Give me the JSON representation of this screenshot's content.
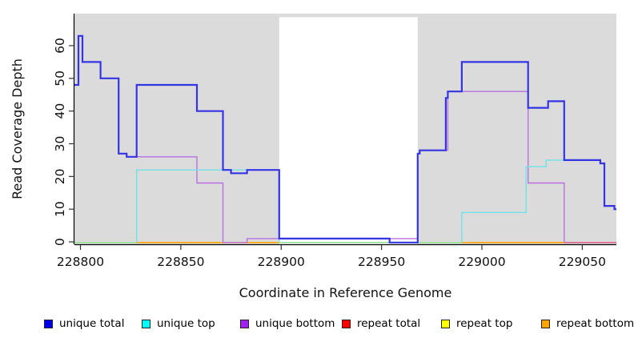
{
  "chart_data": {
    "type": "line",
    "subtype": "step",
    "title": "",
    "xlabel": "Coordinate in Reference Genome",
    "ylabel": "Read Coverage Depth",
    "x_ticks": [
      228800,
      228850,
      228900,
      228950,
      229000,
      229050
    ],
    "y_ticks": [
      0,
      10,
      20,
      30,
      40,
      50,
      60
    ],
    "xlim": [
      228797,
      229067
    ],
    "ylim": [
      0,
      66
    ],
    "grid": false,
    "legend_position": "bottom",
    "shaded_regions": [
      {
        "from": 228797,
        "to": 228899,
        "color": "#dbdbdb"
      },
      {
        "from": 228968,
        "to": 229067,
        "color": "#dbdbdb"
      }
    ],
    "gap_region": {
      "from": 228899,
      "to": 228968
    },
    "series": [
      {
        "name": "repeat total",
        "layer": 1,
        "color": "#ff0000",
        "width": 1.3,
        "paths": [
          [
            [
              228797,
              0
            ],
            [
              229067,
              0
            ]
          ]
        ]
      },
      {
        "name": "repeat top",
        "layer": 1,
        "color": "#ffff00",
        "width": 1.3,
        "paths": [
          [
            [
              228797,
              0
            ],
            [
              229067,
              0
            ]
          ]
        ]
      },
      {
        "name": "repeat bottom",
        "layer": 1,
        "color": "#ffa500",
        "width": 1.4,
        "paths": [
          [
            [
              228797,
              0
            ],
            [
              229067,
              0
            ]
          ]
        ]
      },
      {
        "name": "unique bottom",
        "layer": 2,
        "color": "#b671e0",
        "width": 1.4,
        "paths": [
          [
            [
              228828,
              26
            ],
            [
              228858,
              18
            ],
            [
              228871,
              0
            ],
            [
              228883,
              1
            ],
            [
              228968,
              27
            ],
            [
              228969,
              28
            ],
            [
              228983,
              46
            ],
            [
              229023,
              18
            ],
            [
              229041,
              0
            ],
            [
              229041,
              0
            ]
          ]
        ]
      },
      {
        "name": "unique top",
        "layer": 2,
        "color": "#6fe3e8",
        "width": 1.4,
        "paths": [
          [
            [
              228828,
              0
            ],
            [
              228828,
              22
            ],
            [
              228899,
              0
            ],
            [
              228899,
              0
            ]
          ],
          [
            [
              228990,
              0
            ],
            [
              228990,
              9
            ],
            [
              229022,
              23
            ],
            [
              229032,
              25
            ],
            [
              229059,
              24
            ],
            [
              229061,
              11
            ],
            [
              229066,
              10
            ],
            [
              229067,
              10
            ]
          ]
        ]
      },
      {
        "name": "unique total",
        "layer": 2,
        "color": "#3434e4",
        "width": 2.2,
        "paths": [
          [
            [
              228797,
              48
            ],
            [
              228799,
              63
            ],
            [
              228801,
              55
            ],
            [
              228810,
              50
            ],
            [
              228819,
              27
            ],
            [
              228823,
              26
            ],
            [
              228828,
              48
            ],
            [
              228858,
              40
            ],
            [
              228871,
              22
            ],
            [
              228875,
              21
            ],
            [
              228883,
              22
            ],
            [
              228899,
              1
            ],
            [
              228954,
              0
            ],
            [
              228968,
              27
            ],
            [
              228969,
              28
            ],
            [
              228982,
              44
            ],
            [
              228983,
              46
            ],
            [
              228990,
              55
            ],
            [
              229023,
              41
            ],
            [
              229033,
              43
            ],
            [
              229041,
              25
            ],
            [
              229059,
              24
            ],
            [
              229061,
              11
            ],
            [
              229066,
              10
            ],
            [
              229067,
              10
            ]
          ]
        ]
      }
    ],
    "baseline_segments": [
      {
        "from": 228797,
        "to": 228828,
        "color": "#98df98"
      },
      {
        "from": 228828,
        "to": 228899,
        "color": "#ffa500"
      },
      {
        "from": 228899,
        "to": 228990,
        "color": "#98df98"
      },
      {
        "from": 228990,
        "to": 229041,
        "color": "#ffa500"
      },
      {
        "from": 229041,
        "to": 229067,
        "color": "#dd6490"
      }
    ],
    "legend": [
      {
        "label": "unique total",
        "color": "#0000ee"
      },
      {
        "label": "unique top",
        "color": "#00ffff"
      },
      {
        "label": "unique bottom",
        "color": "#a020f0"
      },
      {
        "label": "repeat total",
        "color": "#ff0000"
      },
      {
        "label": "repeat top",
        "color": "#ffff00"
      },
      {
        "label": "repeat bottom",
        "color": "#ffa500"
      }
    ]
  }
}
